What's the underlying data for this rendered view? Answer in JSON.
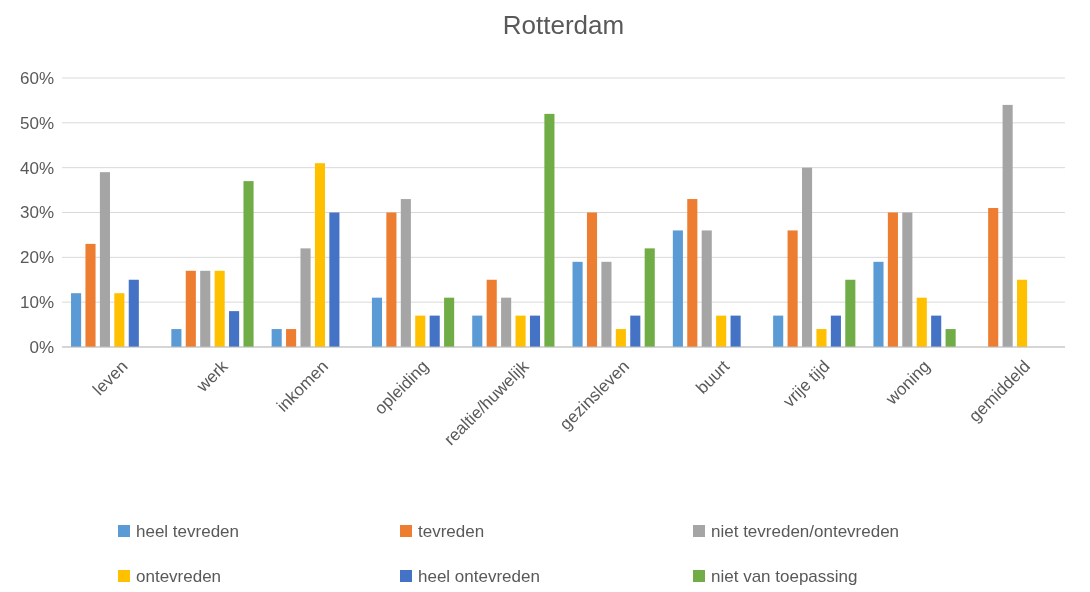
{
  "chart_data": {
    "type": "bar",
    "title": "Rotterdam",
    "categories": [
      "leven",
      "werk",
      "inkomen",
      "opleiding",
      "realtie/huwelijk",
      "gezinsleven",
      "buurt",
      "vrije tijd",
      "woning",
      "gemiddeld"
    ],
    "series": [
      {
        "name": "heel tevreden",
        "color": "#5b9bd5",
        "values": [
          12,
          4,
          4,
          11,
          7,
          19,
          26,
          7,
          19,
          null
        ]
      },
      {
        "name": "tevreden",
        "color": "#ed7d31",
        "values": [
          23,
          17,
          4,
          30,
          15,
          30,
          33,
          26,
          30,
          31
        ]
      },
      {
        "name": "niet tevreden/ontevreden",
        "color": "#a5a5a5",
        "values": [
          39,
          17,
          22,
          33,
          11,
          19,
          26,
          40,
          30,
          54
        ]
      },
      {
        "name": "ontevreden",
        "color": "#ffc000",
        "values": [
          12,
          17,
          41,
          7,
          7,
          4,
          7,
          4,
          11,
          15
        ]
      },
      {
        "name": "heel ontevreden",
        "color": "#4472c4",
        "values": [
          15,
          8,
          30,
          7,
          7,
          7,
          7,
          7,
          7,
          null
        ]
      },
      {
        "name": "niet van toepassing",
        "color": "#70ad47",
        "values": [
          null,
          37,
          null,
          11,
          52,
          22,
          null,
          15,
          4,
          null
        ]
      }
    ],
    "ylim": [
      0,
      60
    ],
    "yticks": [
      {
        "value": 0,
        "label": "0%"
      },
      {
        "value": 10,
        "label": "10%"
      },
      {
        "value": 20,
        "label": "20%"
      },
      {
        "value": 30,
        "label": "30%"
      },
      {
        "value": 40,
        "label": "40%"
      },
      {
        "value": 50,
        "label": "50%"
      },
      {
        "value": 60,
        "label": "60%"
      }
    ],
    "grid": "y",
    "legend": "bottom"
  }
}
